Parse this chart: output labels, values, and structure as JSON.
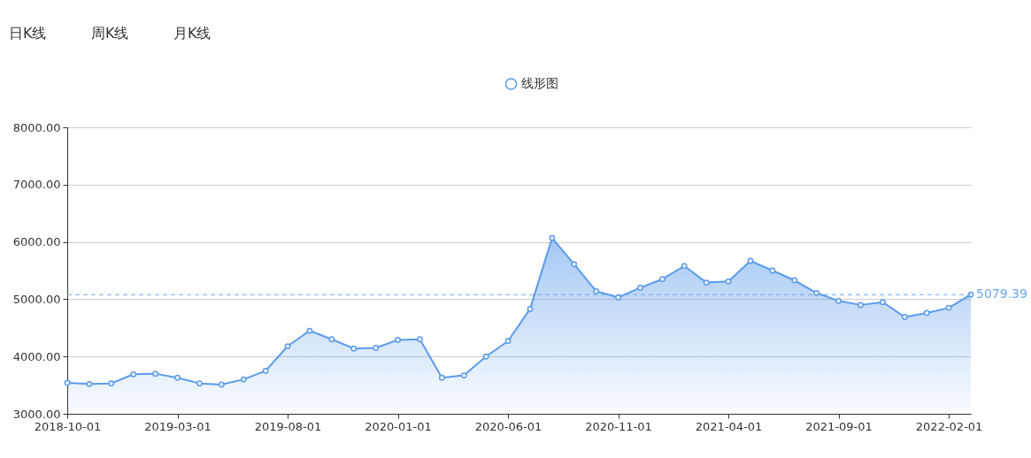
{
  "chart_data": {
    "type": "area",
    "annotations": [
      "日K线",
      "周K线",
      "月K线"
    ],
    "categories": [
      "2018-10-01",
      null,
      null,
      null,
      null,
      "2019-03-01",
      null,
      null,
      null,
      null,
      "2019-08-01",
      null,
      null,
      null,
      null,
      "2020-01-01",
      null,
      null,
      null,
      null,
      "2020-06-01",
      null,
      null,
      null,
      null,
      "2020-11-01",
      null,
      null,
      null,
      null,
      "2021-04-01",
      null,
      null,
      null,
      null,
      "2021-09-01",
      null,
      null,
      null,
      null,
      "2022-02-01",
      null
    ],
    "series": [
      {
        "name": "线形图",
        "color": "#5b9bea",
        "values": [
          3540,
          3520,
          3530,
          3690,
          3700,
          3630,
          3530,
          3510,
          3600,
          3750,
          4180,
          4450,
          4300,
          4140,
          4150,
          4290,
          4300,
          3630,
          3670,
          4000,
          4270,
          4830,
          6070,
          5610,
          5140,
          5030,
          5200,
          5350,
          5580,
          5290,
          5310,
          5670,
          5500,
          5330,
          5110,
          4970,
          4900,
          4950,
          4690,
          4760,
          4850,
          5080
        ]
      }
    ],
    "ylim": [
      3000,
      8000
    ],
    "yticks": [
      {
        "value": 3000,
        "label": "3000.00"
      },
      {
        "value": 4000,
        "label": "4000.00"
      },
      {
        "value": 5000,
        "label": "5000.00"
      },
      {
        "value": 6000,
        "label": "6000.00"
      },
      {
        "value": 7000,
        "label": "7000.00"
      },
      {
        "value": 8000,
        "label": "8000.00"
      }
    ],
    "grid": "y",
    "legend": "top",
    "marker": "circle",
    "ref_lines": [
      {
        "axis": "y",
        "value": 5079.39,
        "label": "5079.39",
        "color": "#6fa6ee",
        "line_style": "dashed"
      }
    ]
  }
}
